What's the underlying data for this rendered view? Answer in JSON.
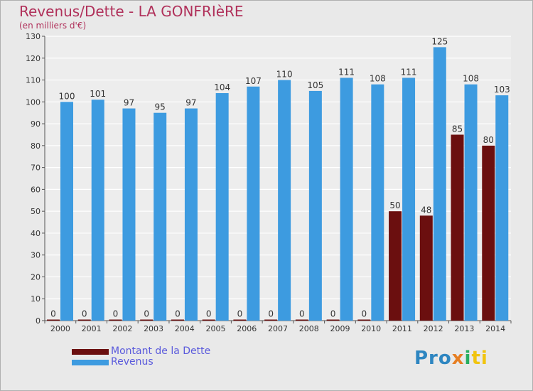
{
  "chart_data": {
    "type": "bar",
    "title": "Revenus/Dette - LA GONFRIèRE",
    "subtitle": "(en milliers d'€)",
    "categories": [
      "2000",
      "2001",
      "2002",
      "2003",
      "2004",
      "2005",
      "2006",
      "2007",
      "2008",
      "2009",
      "2010",
      "2011",
      "2012",
      "2013",
      "2014"
    ],
    "series": [
      {
        "name": "Montant de la Dette",
        "color": "#6b0f0f",
        "values": [
          0,
          0,
          0,
          0,
          0,
          0,
          0,
          0,
          0,
          0,
          0,
          50,
          48,
          85,
          80
        ]
      },
      {
        "name": "Revenus",
        "color": "#3d9be0",
        "values": [
          100,
          101,
          97,
          95,
          97,
          104,
          107,
          110,
          105,
          111,
          108,
          111,
          125,
          108,
          103
        ]
      }
    ],
    "ylim": [
      0,
      130
    ],
    "yticks": [
      0,
      10,
      20,
      30,
      40,
      50,
      60,
      70,
      80,
      90,
      100,
      110,
      120,
      130
    ],
    "grid": true,
    "legend_position": "bottom-left"
  },
  "logo_text": [
    "Pro",
    "x",
    "i",
    "ti"
  ]
}
